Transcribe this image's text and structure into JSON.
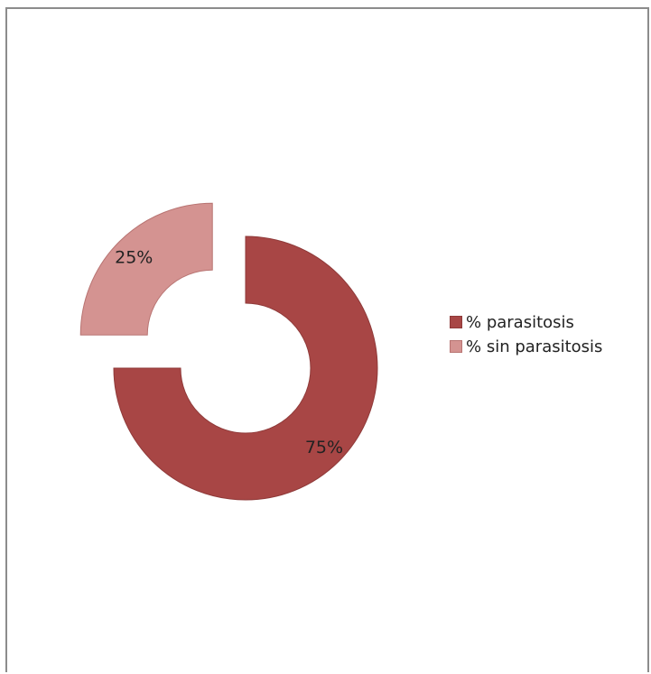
{
  "chart_data": {
    "type": "pie",
    "variant": "exploded-doughnut",
    "title": "",
    "series": [
      {
        "categories": [
          "% parasitosis",
          "% sin parasitosis"
        ],
        "values": [
          75,
          25
        ],
        "data_labels": [
          "75%",
          "25%"
        ],
        "colors": [
          "#a84645",
          "#d49391"
        ]
      }
    ],
    "legend_position": "right",
    "exploded_slice": "% sin parasitosis"
  }
}
